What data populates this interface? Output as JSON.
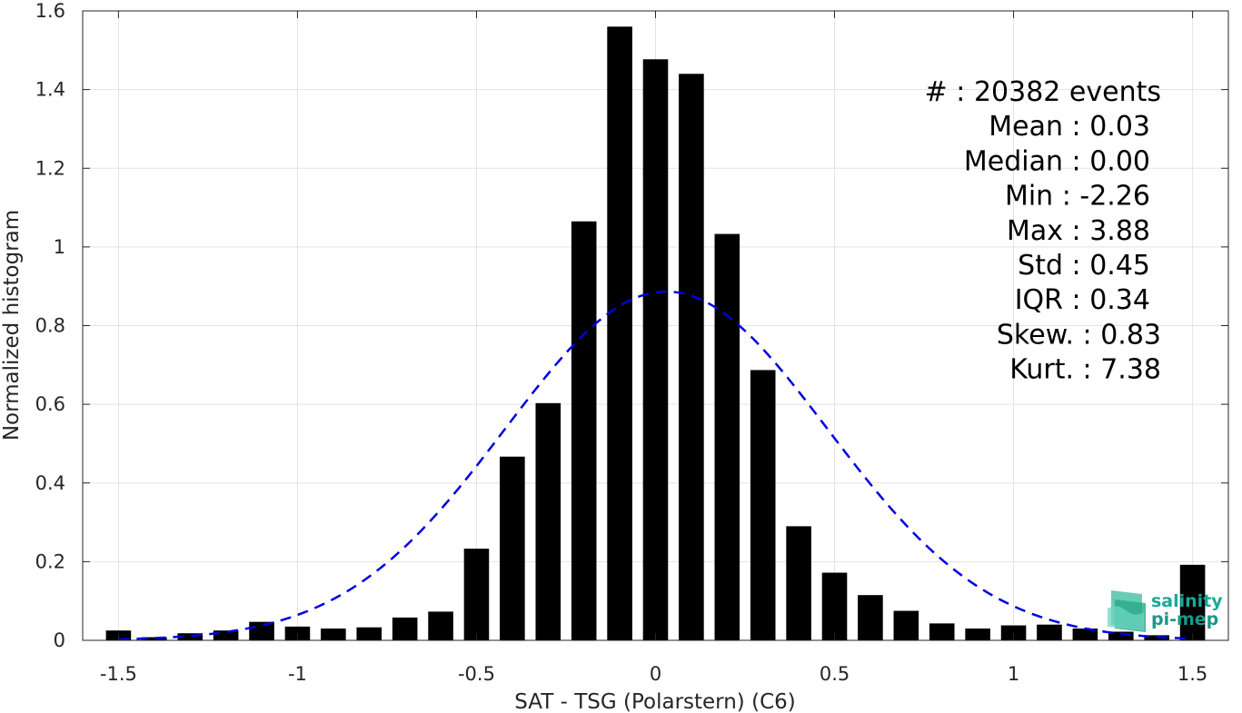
{
  "chart_data": {
    "type": "bar",
    "title": "",
    "xlabel": "SAT - TSG (Polarstern) (C6)",
    "ylabel": "Normalized histogram",
    "xlim": [
      -1.6,
      1.6
    ],
    "ylim": [
      0,
      1.6
    ],
    "xticks": [
      -1.5,
      -1,
      -0.5,
      0,
      0.5,
      1,
      1.5
    ],
    "xtick_labels": [
      "-1.5",
      "-1",
      "-0.5",
      "0",
      "0.5",
      "1",
      "1.5"
    ],
    "yticks": [
      0,
      0.2,
      0.4,
      0.6,
      0.8,
      1,
      1.2,
      1.4,
      1.6
    ],
    "ytick_labels": [
      "0",
      "0.2",
      "0.4",
      "0.6",
      "0.8",
      "1",
      "1.2",
      "1.4",
      "1.6"
    ],
    "grid": true,
    "bar_color": "#000000",
    "bar_width": 0.07,
    "bins": [
      -1.5,
      -1.4,
      -1.3,
      -1.2,
      -1.1,
      -1.0,
      -0.9,
      -0.8,
      -0.7,
      -0.6,
      -0.5,
      -0.4,
      -0.3,
      -0.2,
      -0.1,
      0.0,
      0.1,
      0.2,
      0.3,
      0.4,
      0.5,
      0.6,
      0.7,
      0.8,
      0.9,
      1.0,
      1.1,
      1.2,
      1.3,
      1.4,
      1.5
    ],
    "values": [
      0.025,
      0.008,
      0.018,
      0.025,
      0.047,
      0.035,
      0.03,
      0.033,
      0.058,
      0.073,
      0.233,
      0.467,
      0.603,
      1.065,
      1.56,
      1.477,
      1.44,
      1.033,
      0.687,
      0.29,
      0.172,
      0.115,
      0.075,
      0.043,
      0.03,
      0.038,
      0.04,
      0.03,
      0.022,
      0.013,
      0.192
    ],
    "fit_curve": {
      "type": "normal",
      "mean": 0.03,
      "std": 0.45,
      "style": "dashed",
      "color": "#0000e0"
    },
    "annotations": [
      {
        "label": "#  ",
        "value": ": 20382 events"
      },
      {
        "label": "Mean ",
        "value": ": 0.03"
      },
      {
        "label": "Median ",
        "value": ": 0.00"
      },
      {
        "label": "Min ",
        "value": ": -2.26"
      },
      {
        "label": "Max ",
        "value": ": 3.88"
      },
      {
        "label": "Std ",
        "value": ": 0.45"
      },
      {
        "label": "IQR ",
        "value": ": 0.34"
      },
      {
        "label": "Skew. ",
        "value": ": 0.83"
      },
      {
        "label": "Kurt. ",
        "value": ": 7.38"
      }
    ]
  },
  "logo": {
    "line1": "salinity",
    "line2": "pi-mep",
    "icon": "wave-stack-icon",
    "color": "#1aa898"
  }
}
